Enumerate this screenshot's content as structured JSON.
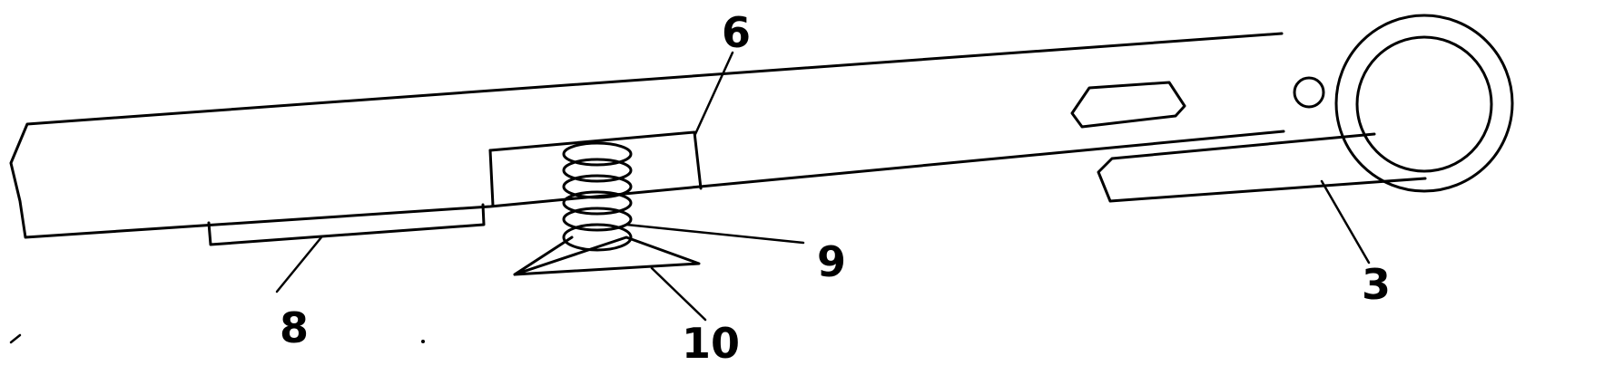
{
  "figure": {
    "callouts": {
      "label_3": "3",
      "label_6": "6",
      "label_8": "8",
      "label_9": "9",
      "label_10": "10"
    },
    "line_color": "#000000",
    "background": "#ffffff"
  }
}
